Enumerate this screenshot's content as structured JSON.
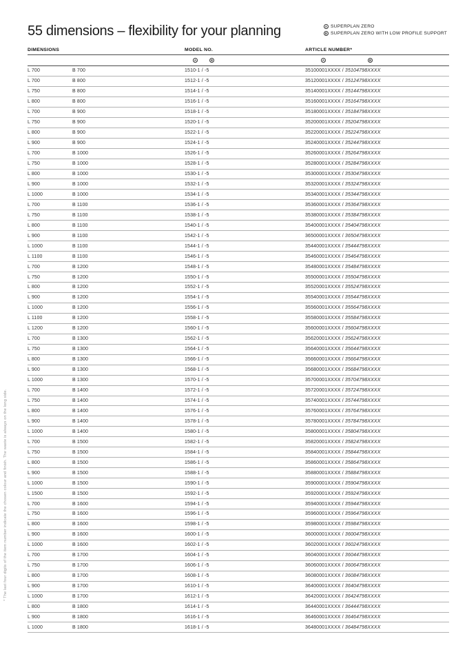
{
  "page": {
    "title": "55 dimensions – flexibility for your planning",
    "footnote": "* The last four digits of the item number indicate the chosen colour and finish. The waste is always on the long side."
  },
  "legend": {
    "a_symbol": "A",
    "a_label": "SUPERPLAN ZERO",
    "b_symbol": "B",
    "b_label": "SUPERPLAN ZERO WITH LOW PROFILE SUPPORT"
  },
  "table": {
    "headers": {
      "dimensions": "DIMENSIONS",
      "model": "MODEL NO.",
      "article": "ARTICLE NUMBER*"
    },
    "subheaders": {
      "model_a": "A",
      "model_b": "B",
      "article_a": "A",
      "article_b": "B"
    },
    "art_sep": " / ",
    "rows": [
      {
        "l": "L 700",
        "b": "B 700",
        "model": "1510-1 / -5",
        "art_a": "35100001XXXX",
        "art_b": "35104798XXXX"
      },
      {
        "l": "L 700",
        "b": "B 800",
        "model": "1512-1 / -5",
        "art_a": "35120001XXXX",
        "art_b": "35124798XXXX"
      },
      {
        "l": "L 750",
        "b": "B 800",
        "model": "1514-1 / -5",
        "art_a": "35140001XXXX",
        "art_b": "35144798XXXX"
      },
      {
        "l": "L 800",
        "b": "B 800",
        "model": "1516-1 / -5",
        "art_a": "35160001XXXX",
        "art_b": "35164798XXXX"
      },
      {
        "l": "L 700",
        "b": "B 900",
        "model": "1518-1 / -5",
        "art_a": "35180001XXXX",
        "art_b": "35184798XXXX"
      },
      {
        "l": "L 750",
        "b": "B 900",
        "model": "1520-1 / -5",
        "art_a": "35200001XXXX",
        "art_b": "35204798XXXX"
      },
      {
        "l": "L 800",
        "b": "B 900",
        "model": "1522-1 / -5",
        "art_a": "35220001XXXX",
        "art_b": "35224798XXXX"
      },
      {
        "l": "L 900",
        "b": "B 900",
        "model": "1524-1 / -5",
        "art_a": "35240001XXXX",
        "art_b": "35244798XXXX"
      },
      {
        "l": "L 700",
        "b": "B 1000",
        "model": "1526-1 / -5",
        "art_a": "35260001XXXX",
        "art_b": "35264798XXXX"
      },
      {
        "l": "L 750",
        "b": "B 1000",
        "model": "1528-1 / -5",
        "art_a": "35280001XXXX",
        "art_b": "35284798XXXX"
      },
      {
        "l": "L 800",
        "b": "B 1000",
        "model": "1530-1 / -5",
        "art_a": "35300001XXXX",
        "art_b": "35304798XXXX"
      },
      {
        "l": "L 900",
        "b": "B 1000",
        "model": "1532-1 / -5",
        "art_a": "35320001XXXX",
        "art_b": "35324798XXXX"
      },
      {
        "l": "L 1000",
        "b": "B 1000",
        "model": "1534-1 / -5",
        "art_a": "35340001XXXX",
        "art_b": "35344798XXXX"
      },
      {
        "l": "L 700",
        "b": "B 1100",
        "model": "1536-1 / -5",
        "art_a": "35360001XXXX",
        "art_b": "35364798XXXX"
      },
      {
        "l": "L 750",
        "b": "B 1100",
        "model": "1538-1 / -5",
        "art_a": "35380001XXXX",
        "art_b": "35384798XXXX"
      },
      {
        "l": "L 800",
        "b": "B 1100",
        "model": "1540-1 / -5",
        "art_a": "35400001XXXX",
        "art_b": "35404798XXXX"
      },
      {
        "l": "L 900",
        "b": "B 1100",
        "model": "1542-1 / -5",
        "art_a": "36500001XXXX",
        "art_b": "36504798XXXX"
      },
      {
        "l": "L 1000",
        "b": "B 1100",
        "model": "1544-1 / -5",
        "art_a": "35440001XXXX",
        "art_b": "35444798XXXX"
      },
      {
        "l": "L 1100",
        "b": "B 1100",
        "model": "1546-1 / -5",
        "art_a": "35460001XXXX",
        "art_b": "35464798XXXX"
      },
      {
        "l": "L 700",
        "b": "B 1200",
        "model": "1548-1 / -5",
        "art_a": "35480001XXXX",
        "art_b": "35484798XXXX"
      },
      {
        "l": "L 750",
        "b": "B 1200",
        "model": "1550-1 / -5",
        "art_a": "35500001XXXX",
        "art_b": "35504798XXXX"
      },
      {
        "l": "L 800",
        "b": "B 1200",
        "model": "1552-1 / -5",
        "art_a": "35520001XXXX",
        "art_b": "35524798XXXX"
      },
      {
        "l": "L 900",
        "b": "B 1200",
        "model": "1554-1 / -5",
        "art_a": "35540001XXXX",
        "art_b": "35544798XXXX"
      },
      {
        "l": "L 1000",
        "b": "B 1200",
        "model": "1556-1 / -5",
        "art_a": "35560001XXXX",
        "art_b": "35564798XXXX"
      },
      {
        "l": "L 1100",
        "b": "B 1200",
        "model": "1558-1 / -5",
        "art_a": "35580001XXXX",
        "art_b": "35584798XXXX"
      },
      {
        "l": "L 1200",
        "b": "B 1200",
        "model": "1560-1 / -5",
        "art_a": "35600001XXXX",
        "art_b": "35604798XXXX"
      },
      {
        "l": "L 700",
        "b": "B 1300",
        "model": "1562-1 / -5",
        "art_a": "35620001XXXX",
        "art_b": "35624798XXXX"
      },
      {
        "l": "L 750",
        "b": "B 1300",
        "model": "1564-1 / -5",
        "art_a": "35640001XXXX",
        "art_b": "35644798XXXX"
      },
      {
        "l": "L 800",
        "b": "B 1300",
        "model": "1566-1 / -5",
        "art_a": "35660001XXXX",
        "art_b": "35664798XXXX"
      },
      {
        "l": "L 900",
        "b": "B 1300",
        "model": "1568-1 / -5",
        "art_a": "35680001XXXX",
        "art_b": "35684798XXXX"
      },
      {
        "l": "L 1000",
        "b": "B 1300",
        "model": "1570-1 / -5",
        "art_a": "35700001XXXX",
        "art_b": "35704798XXXX"
      },
      {
        "l": "L 700",
        "b": "B 1400",
        "model": "1572-1 / -5",
        "art_a": "35720001XXXX",
        "art_b": "35724798XXXX"
      },
      {
        "l": "L 750",
        "b": "B 1400",
        "model": "1574-1 / -5",
        "art_a": "35740001XXXX",
        "art_b": "35744798XXXX"
      },
      {
        "l": "L 800",
        "b": "B 1400",
        "model": "1576-1 / -5",
        "art_a": "35760001XXXX",
        "art_b": "35764798XXXX"
      },
      {
        "l": "L 900",
        "b": "B 1400",
        "model": "1578-1 / -5",
        "art_a": "35780001XXXX",
        "art_b": "35784798XXXX"
      },
      {
        "l": "L 1000",
        "b": "B 1400",
        "model": "1580-1 / -5",
        "art_a": "35800001XXXX",
        "art_b": "35804798XXXX"
      },
      {
        "l": "L 700",
        "b": "B 1500",
        "model": "1582-1 / -5",
        "art_a": "35820001XXXX",
        "art_b": "35824798XXXX"
      },
      {
        "l": "L 750",
        "b": "B 1500",
        "model": "1584-1 / -5",
        "art_a": "35840001XXXX",
        "art_b": "35844798XXXX"
      },
      {
        "l": "L 800",
        "b": "B 1500",
        "model": "1586-1 / -5",
        "art_a": "35860001XXXX",
        "art_b": "35864798XXXX"
      },
      {
        "l": "L 900",
        "b": "B 1500",
        "model": "1588-1 / -5",
        "art_a": "35880001XXXX",
        "art_b": "35884798XXXX"
      },
      {
        "l": "L 1000",
        "b": "B 1500",
        "model": "1590-1 / -5",
        "art_a": "35900001XXXX",
        "art_b": "35904798XXXX"
      },
      {
        "l": "L 1500",
        "b": "B 1500",
        "model": "1592-1 / -5",
        "art_a": "35920001XXXX",
        "art_b": "35924798XXXX"
      },
      {
        "l": "L 700",
        "b": "B 1600",
        "model": "1594-1 / -5",
        "art_a": "35940001XXXX",
        "art_b": "35944798XXXX"
      },
      {
        "l": "L 750",
        "b": "B 1600",
        "model": "1596-1 / -5",
        "art_a": "35960001XXXX",
        "art_b": "35964798XXXX"
      },
      {
        "l": "L 800",
        "b": "B 1600",
        "model": "1598-1 / -5",
        "art_a": "35980001XXXX",
        "art_b": "35984798XXXX"
      },
      {
        "l": "L 900",
        "b": "B 1600",
        "model": "1600-1 / -5",
        "art_a": "36000001XXXX",
        "art_b": "36004798XXXX"
      },
      {
        "l": "L 1000",
        "b": "B 1600",
        "model": "1602-1 / -5",
        "art_a": "36020001XXXX",
        "art_b": "36024798XXXX"
      },
      {
        "l": "L 700",
        "b": "B 1700",
        "model": "1604-1 / -5",
        "art_a": "36040001XXXX",
        "art_b": "36044798XXXX"
      },
      {
        "l": "L 750",
        "b": "B 1700",
        "model": "1606-1 / -5",
        "art_a": "36060001XXXX",
        "art_b": "36064798XXXX"
      },
      {
        "l": "L 800",
        "b": "B 1700",
        "model": "1608-1 / -5",
        "art_a": "36080001XXXX",
        "art_b": "36084798XXXX"
      },
      {
        "l": "L 900",
        "b": "B 1700",
        "model": "1610-1 / -5",
        "art_a": "36400001XXXX",
        "art_b": "36404798XXXX"
      },
      {
        "l": "L 1000",
        "b": "B 1700",
        "model": "1612-1 / -5",
        "art_a": "36420001XXXX",
        "art_b": "36424798XXXX"
      },
      {
        "l": "L 800",
        "b": "B 1800",
        "model": "1614-1 / -5",
        "art_a": "36440001XXXX",
        "art_b": "36444798XXXX"
      },
      {
        "l": "L 900",
        "b": "B 1800",
        "model": "1616-1 / -5",
        "art_a": "36460001XXXX",
        "art_b": "36464798XXXX"
      },
      {
        "l": "L 1000",
        "b": "B 1800",
        "model": "1618-1 / -5",
        "art_a": "36480001XXXX",
        "art_b": "36484798XXXX"
      }
    ]
  }
}
